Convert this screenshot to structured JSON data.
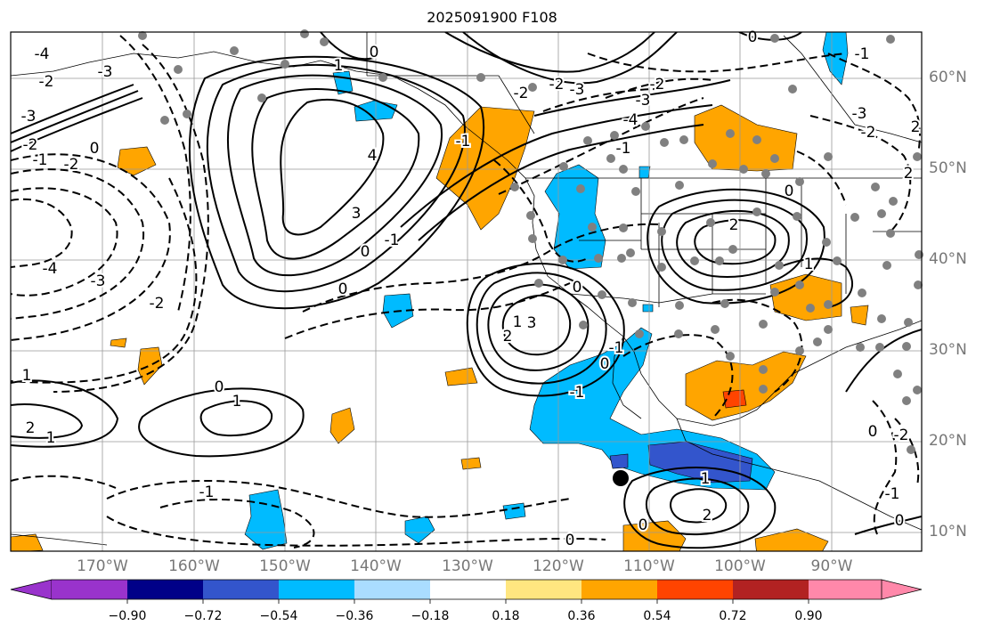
{
  "title": "2025091900 F108",
  "lat_labels": [
    "60°N",
    "50°N",
    "40°N",
    "30°N",
    "20°N",
    "10°N"
  ],
  "lon_labels": [
    "170°W",
    "160°W",
    "150°W",
    "140°W",
    "130°W",
    "120°W",
    "110°W",
    "100°W",
    "90°W"
  ],
  "contour_labels": {
    "c1": "-4",
    "c2": "-3",
    "c3": "-2",
    "c4": "-3",
    "c5": "-2",
    "c6": "0",
    "c7": "-1",
    "c8": "-2",
    "c9": "1",
    "c10": "0",
    "c11": "4",
    "c12": "3",
    "c13": "-1",
    "c14": "0",
    "c15": "-4",
    "c16": "-3",
    "c17": "-2",
    "c18": "0",
    "c19": "1",
    "c20": "2",
    "c21": "3",
    "c22": "-2",
    "c23": "-3",
    "c24": "-2",
    "c25": "-1",
    "c26": "0",
    "c27": "2",
    "c28": "1",
    "c29": "0",
    "c30": "0",
    "c31": "1",
    "c32": "-1",
    "c33": "2",
    "c34": "1",
    "c35": "-1",
    "c36": "0",
    "c37": "-1",
    "c38": "1",
    "c39": "2",
    "c40": "0",
    "c41": "0",
    "c42": "2",
    "c43": "1",
    "c44": "-1",
    "c45": "-2",
    "c46": "-3",
    "c47": "-4",
    "c48": "0",
    "c49": "-2",
    "c50": "2",
    "c51": "0",
    "c52": "-1",
    "c53": "-3",
    "c54": "-2",
    "c55": "-1",
    "c56": "0"
  },
  "colorbar": {
    "colors": [
      "#9933cc",
      "#000088",
      "#3355cc",
      "#00bbff",
      "#aaddff",
      "#ffffff",
      "#ffe680",
      "#ffa500",
      "#ff4400",
      "#b22222",
      "#ff88aa"
    ],
    "ticks": [
      "−0.90",
      "−0.72",
      "−0.54",
      "−0.36",
      "−0.18",
      "0.18",
      "0.36",
      "0.54",
      "0.72",
      "0.90"
    ]
  }
}
